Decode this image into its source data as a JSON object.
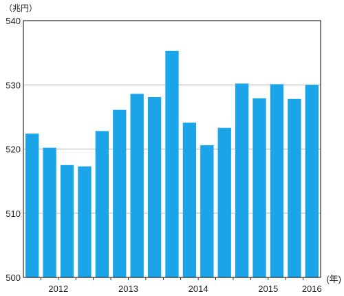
{
  "chart_data": {
    "type": "bar",
    "y_unit_label": "（兆円）",
    "x_unit_label": "(年)",
    "ylim": [
      500,
      540
    ],
    "y_ticks": [
      "500",
      "510",
      "520",
      "530",
      "540"
    ],
    "grid": "horizontal",
    "categories": [
      "2012 Q1",
      "2012 Q2",
      "2012 Q3",
      "2012 Q4",
      "2013 Q1",
      "2013 Q2",
      "2013 Q3",
      "2013 Q4",
      "2014 Q1",
      "2014 Q2",
      "2014 Q3",
      "2014 Q4",
      "2015 Q1",
      "2015 Q2",
      "2015 Q3",
      "2015 Q4",
      "2016 Q1"
    ],
    "values": [
      522.4,
      520.2,
      517.5,
      517.3,
      522.8,
      526.1,
      528.6,
      528.1,
      535.3,
      524.1,
      520.6,
      523.3,
      530.2,
      527.9,
      530.1,
      527.8,
      530.0
    ],
    "year_labels": [
      {
        "label": "2012",
        "center_index": 1.5
      },
      {
        "label": "2013",
        "center_index": 5.5
      },
      {
        "label": "2014",
        "center_index": 9.5
      },
      {
        "label": "2015",
        "center_index": 13.5
      },
      {
        "label": "2016",
        "center_index": 16
      }
    ],
    "bar_color": "#1ca4e8"
  }
}
